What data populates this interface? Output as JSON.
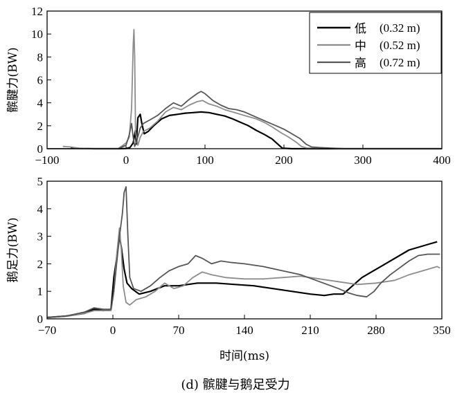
{
  "caption": "(d) 髌腱与鹅足受力",
  "legend": [
    {
      "label": "低",
      "detail": "(0.32 m)",
      "color": "#000000",
      "width": 2.2
    },
    {
      "label": "中",
      "detail": "(0.52 m)",
      "color": "#8c8c8c",
      "width": 1.8
    },
    {
      "label": "高",
      "detail": "(0.72 m)",
      "color": "#555555",
      "width": 1.8
    }
  ],
  "chart_data": [
    {
      "type": "line",
      "ylabel": "髌腱力(BW)",
      "xlabel": "",
      "xlim": [
        -100,
        400
      ],
      "ylim": [
        0,
        12
      ],
      "xticks": [
        -100,
        0,
        100,
        200,
        300,
        400
      ],
      "yticks": [
        0,
        2,
        4,
        6,
        8,
        10,
        12
      ],
      "series": [
        {
          "name": "低 (0.32 m)",
          "points": [
            [
              -70,
              0.1
            ],
            [
              -60,
              0.03
            ],
            [
              -40,
              0
            ],
            [
              -10,
              0
            ],
            [
              0,
              0.02
            ],
            [
              5,
              0.1
            ],
            [
              9,
              0.5
            ],
            [
              12,
              1.6
            ],
            [
              13,
              0.4
            ],
            [
              15,
              2.7
            ],
            [
              18,
              3.0
            ],
            [
              20,
              2.2
            ],
            [
              23,
              1.3
            ],
            [
              28,
              1.5
            ],
            [
              35,
              2
            ],
            [
              45,
              2.6
            ],
            [
              55,
              2.9
            ],
            [
              65,
              3.0
            ],
            [
              75,
              3.1
            ],
            [
              85,
              3.15
            ],
            [
              95,
              3.2
            ],
            [
              105,
              3.15
            ],
            [
              115,
              3.0
            ],
            [
              125,
              2.85
            ],
            [
              135,
              2.6
            ],
            [
              145,
              2.3
            ],
            [
              155,
              2.0
            ],
            [
              165,
              1.6
            ],
            [
              175,
              1.25
            ],
            [
              185,
              0.85
            ],
            [
              193,
              0.35
            ],
            [
              198,
              0.05
            ],
            [
              210,
              0
            ],
            [
              400,
              0
            ]
          ]
        },
        {
          "name": "中 (0.52 m)",
          "points": [
            [
              -80,
              0.2
            ],
            [
              -70,
              0.15
            ],
            [
              -60,
              0.05
            ],
            [
              -40,
              0
            ],
            [
              -10,
              0
            ],
            [
              0,
              0.5
            ],
            [
              4,
              1.0
            ],
            [
              7,
              3.5
            ],
            [
              9,
              9
            ],
            [
              10,
              10.4
            ],
            [
              11,
              8
            ],
            [
              12,
              1.5
            ],
            [
              15,
              0.3
            ],
            [
              18,
              1.0
            ],
            [
              22,
              1.5
            ],
            [
              30,
              1.8
            ],
            [
              40,
              2.4
            ],
            [
              50,
              3.2
            ],
            [
              60,
              3.6
            ],
            [
              70,
              3.4
            ],
            [
              80,
              3.8
            ],
            [
              90,
              4.1
            ],
            [
              97,
              4.2
            ],
            [
              105,
              3.9
            ],
            [
              115,
              3.7
            ],
            [
              125,
              3.4
            ],
            [
              135,
              3.2
            ],
            [
              145,
              3.0
            ],
            [
              155,
              2.8
            ],
            [
              165,
              2.6
            ],
            [
              175,
              2.3
            ],
            [
              185,
              1.9
            ],
            [
              195,
              1.45
            ],
            [
              205,
              1.05
            ],
            [
              215,
              0.6
            ],
            [
              222,
              0.2
            ],
            [
              230,
              0.05
            ],
            [
              240,
              0.05
            ],
            [
              270,
              0
            ],
            [
              400,
              0
            ]
          ]
        },
        {
          "name": "高 (0.72 m)",
          "points": [
            [
              -100,
              0
            ],
            [
              -10,
              0
            ],
            [
              0,
              0.3
            ],
            [
              4,
              1.2
            ],
            [
              7,
              2.2
            ],
            [
              9,
              1.0
            ],
            [
              11,
              0.2
            ],
            [
              14,
              0.8
            ],
            [
              18,
              1.8
            ],
            [
              22,
              2.2
            ],
            [
              30,
              2.5
            ],
            [
              40,
              2.9
            ],
            [
              50,
              3.5
            ],
            [
              60,
              4.0
            ],
            [
              70,
              3.7
            ],
            [
              80,
              4.3
            ],
            [
              90,
              4.8
            ],
            [
              95,
              5.0
            ],
            [
              100,
              4.8
            ],
            [
              110,
              4.2
            ],
            [
              120,
              3.8
            ],
            [
              130,
              3.5
            ],
            [
              140,
              3.4
            ],
            [
              150,
              3.2
            ],
            [
              160,
              2.9
            ],
            [
              170,
              2.6
            ],
            [
              180,
              2.3
            ],
            [
              190,
              2.0
            ],
            [
              200,
              1.7
            ],
            [
              210,
              1.3
            ],
            [
              220,
              0.9
            ],
            [
              228,
              0.4
            ],
            [
              235,
              0.15
            ],
            [
              245,
              0.1
            ],
            [
              260,
              0.05
            ],
            [
              280,
              0
            ],
            [
              400,
              0
            ]
          ]
        }
      ]
    },
    {
      "type": "line",
      "ylabel": "鹅足力(BW)",
      "xlabel": "时间(ms)",
      "xlim": [
        -70,
        350
      ],
      "ylim": [
        0,
        5
      ],
      "xticks": [
        -70,
        0,
        70,
        140,
        210,
        280,
        350
      ],
      "yticks": [
        0,
        1,
        2,
        3,
        4,
        5
      ],
      "series": [
        {
          "name": "低 (0.32 m)",
          "points": [
            [
              -70,
              0.05
            ],
            [
              -50,
              0.1
            ],
            [
              -30,
              0.2
            ],
            [
              -20,
              0.35
            ],
            [
              -10,
              0.3
            ],
            [
              -2,
              0.35
            ],
            [
              1,
              1.5
            ],
            [
              4,
              2.2
            ],
            [
              7,
              3.0
            ],
            [
              9,
              2.6
            ],
            [
              12,
              1.8
            ],
            [
              15,
              1.3
            ],
            [
              20,
              1.1
            ],
            [
              28,
              0.9
            ],
            [
              40,
              1.0
            ],
            [
              55,
              1.2
            ],
            [
              70,
              1.2
            ],
            [
              90,
              1.3
            ],
            [
              110,
              1.3
            ],
            [
              130,
              1.25
            ],
            [
              150,
              1.2
            ],
            [
              170,
              1.1
            ],
            [
              190,
              1.0
            ],
            [
              210,
              0.9
            ],
            [
              225,
              0.85
            ],
            [
              235,
              0.9
            ],
            [
              245,
              0.9
            ],
            [
              255,
              1.2
            ],
            [
              265,
              1.5
            ],
            [
              275,
              1.7
            ],
            [
              285,
              1.9
            ],
            [
              295,
              2.1
            ],
            [
              305,
              2.3
            ],
            [
              315,
              2.5
            ],
            [
              325,
              2.6
            ],
            [
              335,
              2.7
            ],
            [
              345,
              2.8
            ]
          ]
        },
        {
          "name": "中 (0.52 m)",
          "points": [
            [
              -70,
              0.05
            ],
            [
              -50,
              0.1
            ],
            [
              -30,
              0.2
            ],
            [
              -20,
              0.3
            ],
            [
              -10,
              0.3
            ],
            [
              -2,
              0.3
            ],
            [
              1,
              1.0
            ],
            [
              4,
              2.3
            ],
            [
              7,
              3.3
            ],
            [
              9,
              2.5
            ],
            [
              11,
              1.2
            ],
            [
              14,
              0.6
            ],
            [
              18,
              0.5
            ],
            [
              25,
              0.7
            ],
            [
              35,
              0.8
            ],
            [
              45,
              1.0
            ],
            [
              55,
              1.3
            ],
            [
              65,
              1.1
            ],
            [
              75,
              1.2
            ],
            [
              85,
              1.5
            ],
            [
              95,
              1.7
            ],
            [
              105,
              1.6
            ],
            [
              120,
              1.5
            ],
            [
              140,
              1.45
            ],
            [
              160,
              1.45
            ],
            [
              180,
              1.5
            ],
            [
              200,
              1.55
            ],
            [
              220,
              1.45
            ],
            [
              240,
              1.35
            ],
            [
              260,
              1.25
            ],
            [
              280,
              1.3
            ],
            [
              300,
              1.4
            ],
            [
              315,
              1.6
            ],
            [
              330,
              1.75
            ],
            [
              340,
              1.85
            ],
            [
              345,
              1.9
            ],
            [
              348,
              1.85
            ]
          ]
        },
        {
          "name": "高 (0.72 m)",
          "points": [
            [
              -70,
              0.05
            ],
            [
              -50,
              0.1
            ],
            [
              -30,
              0.25
            ],
            [
              -20,
              0.4
            ],
            [
              -10,
              0.35
            ],
            [
              -2,
              0.35
            ],
            [
              1,
              1.0
            ],
            [
              4,
              2.0
            ],
            [
              7,
              3.0
            ],
            [
              10,
              3.8
            ],
            [
              12,
              4.6
            ],
            [
              14,
              4.8
            ],
            [
              16,
              3.0
            ],
            [
              18,
              1.5
            ],
            [
              22,
              1.1
            ],
            [
              30,
              1.0
            ],
            [
              40,
              1.2
            ],
            [
              50,
              1.5
            ],
            [
              60,
              1.75
            ],
            [
              70,
              1.9
            ],
            [
              80,
              2.0
            ],
            [
              88,
              2.3
            ],
            [
              95,
              2.2
            ],
            [
              105,
              2.0
            ],
            [
              115,
              2.1
            ],
            [
              125,
              2.05
            ],
            [
              140,
              2.0
            ],
            [
              160,
              1.9
            ],
            [
              180,
              1.75
            ],
            [
              200,
              1.6
            ],
            [
              220,
              1.35
            ],
            [
              240,
              1.1
            ],
            [
              250,
              0.95
            ],
            [
              260,
              0.85
            ],
            [
              270,
              0.8
            ],
            [
              278,
              1.0
            ],
            [
              285,
              1.3
            ],
            [
              295,
              1.6
            ],
            [
              305,
              1.85
            ],
            [
              315,
              2.1
            ],
            [
              325,
              2.3
            ],
            [
              335,
              2.35
            ],
            [
              348,
              2.35
            ]
          ]
        }
      ]
    }
  ]
}
